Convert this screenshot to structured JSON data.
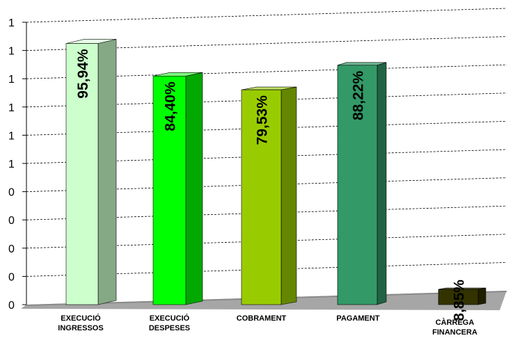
{
  "chart_data": {
    "type": "bar",
    "categories": [
      [
        "EXECUCIÓ",
        "INGRESSOS"
      ],
      [
        "EXECUCIÓ",
        "DESPESES"
      ],
      [
        "COBRAMENT"
      ],
      [
        "PAGAMENT"
      ],
      [
        "CÀRREGA",
        "FINANCERA"
      ]
    ],
    "values": [
      0.9594,
      0.844,
      0.7953,
      0.8822,
      0.0885
    ],
    "data_labels": [
      "95,94%",
      "84,40%",
      "79,53%",
      "88,22%",
      "8,85%"
    ],
    "y_tick_labels": [
      "0",
      "0",
      "0",
      "0",
      "0",
      "1",
      "1",
      "1",
      "1",
      "1",
      "1"
    ],
    "ylim": [
      0,
      1
    ],
    "grid": true,
    "three_d": true,
    "legend": "none",
    "colors": {
      "front": [
        "#ccffcc",
        "#00ff00",
        "#99cc00",
        "#339966",
        "#333300"
      ],
      "side": [
        "#85a885",
        "#00a800",
        "#658600",
        "#216444",
        "#1f1f00"
      ],
      "top": [
        "#e6ffe6",
        "#80ff80",
        "#c2e066",
        "#70b894",
        "#5c5c33"
      ],
      "floor": "#a6a6a6",
      "axis": "#000000",
      "grid": "#000000"
    }
  }
}
